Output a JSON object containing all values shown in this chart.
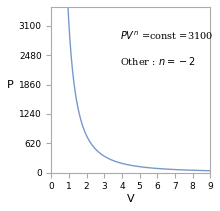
{
  "const": 3100,
  "n_display": -2,
  "v_min": 0.03,
  "v_max": 9.0,
  "p_min": 0,
  "p_max": 3500,
  "xlabel": "V",
  "ylabel": "P",
  "line_color": "#7799cc",
  "annotation_line1": "$PV^n$ =const =3100",
  "annotation_line2": "Other : $n=-2$",
  "yticks": [
    0,
    620,
    1240,
    1860,
    2480,
    3100
  ],
  "xticks": [
    0,
    1,
    2,
    3,
    4,
    5,
    6,
    7,
    8,
    9
  ],
  "figsize": [
    2.2,
    2.11
  ],
  "dpi": 100
}
